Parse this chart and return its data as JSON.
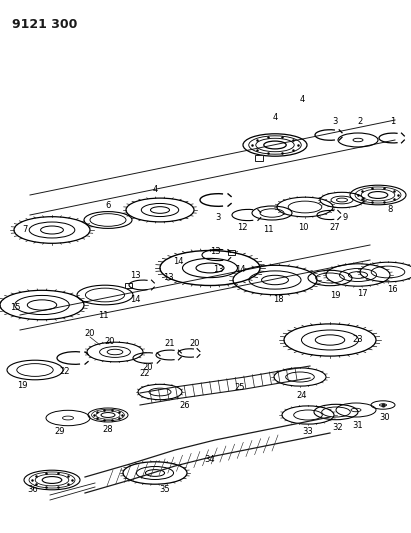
{
  "title": "9121 300",
  "bg_color": "#ffffff",
  "line_color": "#1a1a1a",
  "fig_width": 4.11,
  "fig_height": 5.33,
  "dpi": 100
}
